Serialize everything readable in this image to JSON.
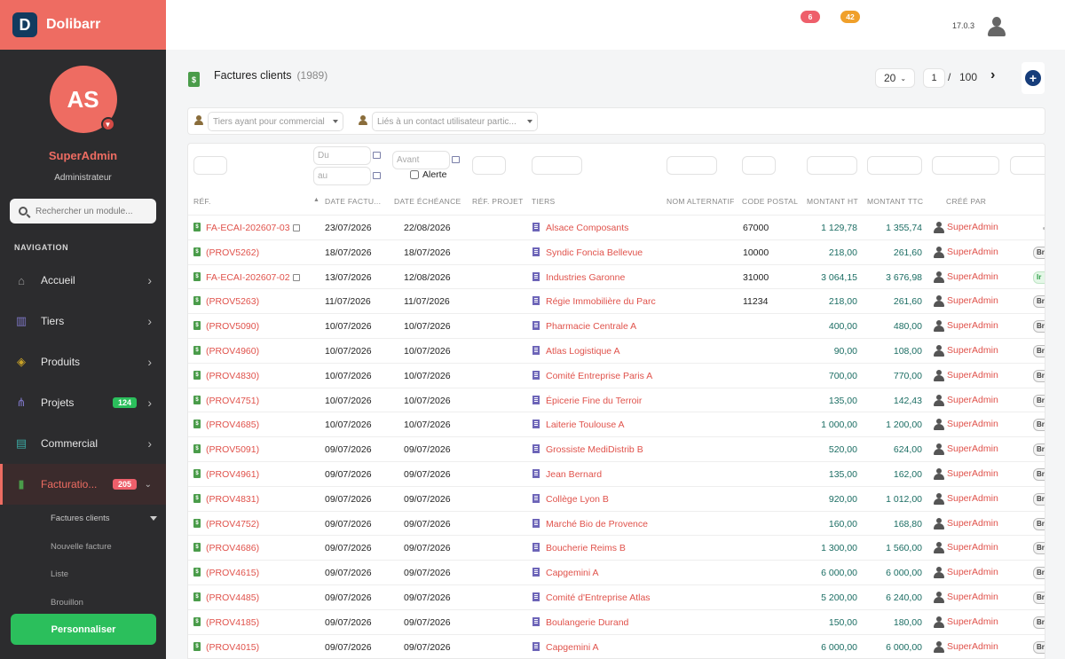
{
  "brand": {
    "logo_letter": "D",
    "name": "Dolibarr"
  },
  "user": {
    "initials": "AS",
    "name": "SuperAdmin",
    "role": "Administrateur"
  },
  "sidebar": {
    "search_placeholder": "Rechercher un module...",
    "nav_heading": "NAVIGATION",
    "items": [
      {
        "label": "Accueil",
        "icon": "home-icon",
        "badge": ""
      },
      {
        "label": "Tiers",
        "icon": "building-icon",
        "badge": ""
      },
      {
        "label": "Produits",
        "icon": "cube-icon",
        "badge": ""
      },
      {
        "label": "Projets",
        "icon": "sitemap-icon",
        "badge": "124",
        "badge_color": "#2bbf5c"
      },
      {
        "label": "Commercial",
        "icon": "briefcase-icon",
        "badge": ""
      },
      {
        "label": "Facturatio...",
        "icon": "invoice-icon",
        "badge": "205",
        "badge_color": "#ee5f6b",
        "active": true
      }
    ],
    "sub_items": [
      "Factures clients",
      "Nouvelle facture",
      "Liste",
      "Brouillon"
    ],
    "personalize_label": "Personnaliser"
  },
  "topbar": {
    "badge_red": "6",
    "badge_orange": "42",
    "version": "17.0.3",
    "colors": {
      "red": "#ee5f6b",
      "orange": "#f0a02a"
    }
  },
  "header": {
    "title": "Factures clients",
    "count": "(1989)"
  },
  "pager": {
    "per_page": "20",
    "page": "1",
    "slash": "/",
    "total": "100",
    "next": "›",
    "add": "+"
  },
  "filters": {
    "commercial_placeholder": "Tiers ayant pour commercial",
    "contact_placeholder": "Liés à un contact utilisateur partic..."
  },
  "column_filters": {
    "du": "Du",
    "au": "au",
    "avant": "Avant",
    "alerte": "Alerte"
  },
  "columns": {
    "ref": "RÉF.",
    "date_facture": "DATE FACTU...",
    "date_echeance": "DATE ÉCHÉANCE",
    "ref_projet": "RÉF. PROJET",
    "tiers": "TIERS",
    "nom_alternatif": "NOM ALTERNATIF",
    "code_postal": "CODE POSTAL",
    "montant_ht": "MONTANT HT",
    "montant_ttc": "MONTANT TTC",
    "cree_par": "CRÉÉ PAR"
  },
  "rows": [
    {
      "ref": "FA-ECAI-202607-03",
      "note": true,
      "date": "23/07/2026",
      "due": "22/08/2026",
      "tiers": "Alsace Composants",
      "cp": "67000",
      "ht": "1 129,78",
      "ttc": "1 355,74",
      "creator": "SuperAdmin",
      "status": "",
      "status_style": "none"
    },
    {
      "ref": "(PROV5262)",
      "note": false,
      "date": "18/07/2026",
      "due": "18/07/2026",
      "tiers": "Syndic Foncia Bellevue",
      "cp": "10000",
      "ht": "218,00",
      "ttc": "261,60",
      "creator": "SuperAdmin",
      "status": "Br",
      "status_style": "grey"
    },
    {
      "ref": "FA-ECAI-202607-02",
      "note": true,
      "date": "13/07/2026",
      "due": "12/08/2026",
      "tiers": "Industries Garonne",
      "cp": "31000",
      "ht": "3 064,15",
      "ttc": "3 676,98",
      "creator": "SuperAdmin",
      "status": "Ir",
      "status_style": "green"
    },
    {
      "ref": "(PROV5263)",
      "note": false,
      "date": "11/07/2026",
      "due": "11/07/2026",
      "tiers": "Régie Immobilière du Parc",
      "cp": "11234",
      "ht": "218,00",
      "ttc": "261,60",
      "creator": "SuperAdmin",
      "status": "Br",
      "status_style": "grey"
    },
    {
      "ref": "(PROV5090)",
      "note": false,
      "date": "10/07/2026",
      "due": "10/07/2026",
      "tiers": "Pharmacie Centrale A",
      "cp": "",
      "ht": "400,00",
      "ttc": "480,00",
      "creator": "SuperAdmin",
      "status": "Br",
      "status_style": "grey"
    },
    {
      "ref": "(PROV4960)",
      "note": false,
      "date": "10/07/2026",
      "due": "10/07/2026",
      "tiers": "Atlas Logistique A",
      "cp": "",
      "ht": "90,00",
      "ttc": "108,00",
      "creator": "SuperAdmin",
      "status": "Br",
      "status_style": "grey"
    },
    {
      "ref": "(PROV4830)",
      "note": false,
      "date": "10/07/2026",
      "due": "10/07/2026",
      "tiers": "Comité Entreprise Paris A",
      "cp": "",
      "ht": "700,00",
      "ttc": "770,00",
      "creator": "SuperAdmin",
      "status": "Br",
      "status_style": "grey"
    },
    {
      "ref": "(PROV4751)",
      "note": false,
      "date": "10/07/2026",
      "due": "10/07/2026",
      "tiers": "Épicerie Fine du Terroir",
      "cp": "",
      "ht": "135,00",
      "ttc": "142,43",
      "creator": "SuperAdmin",
      "status": "Br",
      "status_style": "grey"
    },
    {
      "ref": "(PROV4685)",
      "note": false,
      "date": "10/07/2026",
      "due": "10/07/2026",
      "tiers": "Laiterie Toulouse A",
      "cp": "",
      "ht": "1 000,00",
      "ttc": "1 200,00",
      "creator": "SuperAdmin",
      "status": "Br",
      "status_style": "grey"
    },
    {
      "ref": "(PROV5091)",
      "note": false,
      "date": "09/07/2026",
      "due": "09/07/2026",
      "tiers": "Grossiste MediDistrib B",
      "cp": "",
      "ht": "520,00",
      "ttc": "624,00",
      "creator": "SuperAdmin",
      "status": "Br",
      "status_style": "grey"
    },
    {
      "ref": "(PROV4961)",
      "note": false,
      "date": "09/07/2026",
      "due": "09/07/2026",
      "tiers": "Jean Bernard",
      "cp": "",
      "ht": "135,00",
      "ttc": "162,00",
      "creator": "SuperAdmin",
      "status": "Br",
      "status_style": "grey"
    },
    {
      "ref": "(PROV4831)",
      "note": false,
      "date": "09/07/2026",
      "due": "09/07/2026",
      "tiers": "Collège Lyon B",
      "cp": "",
      "ht": "920,00",
      "ttc": "1 012,00",
      "creator": "SuperAdmin",
      "status": "Br",
      "status_style": "grey"
    },
    {
      "ref": "(PROV4752)",
      "note": false,
      "date": "09/07/2026",
      "due": "09/07/2026",
      "tiers": "Marché Bio de Provence",
      "cp": "",
      "ht": "160,00",
      "ttc": "168,80",
      "creator": "SuperAdmin",
      "status": "Br",
      "status_style": "grey"
    },
    {
      "ref": "(PROV4686)",
      "note": false,
      "date": "09/07/2026",
      "due": "09/07/2026",
      "tiers": "Boucherie Reims B",
      "cp": "",
      "ht": "1 300,00",
      "ttc": "1 560,00",
      "creator": "SuperAdmin",
      "status": "Br",
      "status_style": "grey"
    },
    {
      "ref": "(PROV4615)",
      "note": false,
      "date": "09/07/2026",
      "due": "09/07/2026",
      "tiers": "Capgemini A",
      "cp": "",
      "ht": "6 000,00",
      "ttc": "6 000,00",
      "creator": "SuperAdmin",
      "status": "Br",
      "status_style": "grey"
    },
    {
      "ref": "(PROV4485)",
      "note": false,
      "date": "09/07/2026",
      "due": "09/07/2026",
      "tiers": "Comité d'Entreprise Atlas",
      "cp": "",
      "ht": "5 200,00",
      "ttc": "6 240,00",
      "creator": "SuperAdmin",
      "status": "Br",
      "status_style": "grey"
    },
    {
      "ref": "(PROV4185)",
      "note": false,
      "date": "09/07/2026",
      "due": "09/07/2026",
      "tiers": "Boulangerie Durand",
      "cp": "",
      "ht": "150,00",
      "ttc": "180,00",
      "creator": "SuperAdmin",
      "status": "Br",
      "status_style": "grey"
    },
    {
      "ref": "(PROV4015)",
      "note": false,
      "date": "09/07/2026",
      "due": "09/07/2026",
      "tiers": "Capgemini A",
      "cp": "",
      "ht": "6 000,00",
      "ttc": "6 000,00",
      "creator": "SuperAdmin",
      "status": "Br",
      "status_style": "grey"
    }
  ]
}
